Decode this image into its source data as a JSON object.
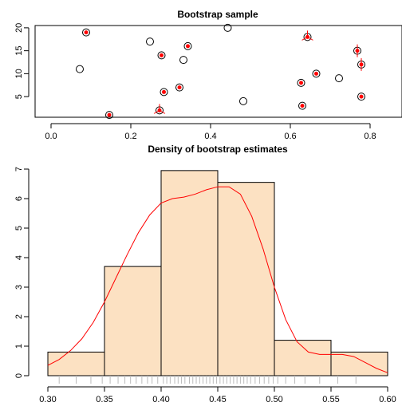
{
  "colors": {
    "bar_fill": "#fce1c2",
    "density_line": "#ff0000",
    "marker_red": "#ff0000",
    "axis": "#000000",
    "rug": "#bbbbbb"
  },
  "chart_data": [
    {
      "type": "scatter",
      "title": "Bootstrap sample",
      "xlabel": "",
      "ylabel": "",
      "xlim": [
        -0.04,
        0.88
      ],
      "ylim": [
        0.5,
        20.5
      ],
      "xticks": [
        "0.0",
        "0.2",
        "0.4",
        "0.6",
        "0.8"
      ],
      "yticks": [
        "5",
        "10",
        "15",
        "20"
      ],
      "grid": false,
      "points": [
        {
          "x": 0.443,
          "y": 20,
          "red": false
        },
        {
          "x": 0.088,
          "y": 19,
          "red": true
        },
        {
          "x": 0.643,
          "y": 18,
          "red": true
        },
        {
          "x": 0.248,
          "y": 17,
          "red": false
        },
        {
          "x": 0.343,
          "y": 16,
          "red": true
        },
        {
          "x": 0.768,
          "y": 15,
          "red": true
        },
        {
          "x": 0.277,
          "y": 14,
          "red": true
        },
        {
          "x": 0.332,
          "y": 13,
          "red": false
        },
        {
          "x": 0.778,
          "y": 12,
          "red": true
        },
        {
          "x": 0.072,
          "y": 11,
          "red": false
        },
        {
          "x": 0.665,
          "y": 10,
          "red": true
        },
        {
          "x": 0.722,
          "y": 9,
          "red": false
        },
        {
          "x": 0.627,
          "y": 8,
          "red": true
        },
        {
          "x": 0.322,
          "y": 7,
          "red": true
        },
        {
          "x": 0.283,
          "y": 6,
          "red": true
        },
        {
          "x": 0.778,
          "y": 5,
          "red": true
        },
        {
          "x": 0.482,
          "y": 4,
          "red": false
        },
        {
          "x": 0.63,
          "y": 3,
          "red": true
        },
        {
          "x": 0.272,
          "y": 2,
          "red": true
        },
        {
          "x": 0.146,
          "y": 1,
          "red": true
        }
      ],
      "resample_counts": [
        {
          "x": 0.643,
          "y": 18,
          "count": 3
        },
        {
          "x": 0.768,
          "y": 15,
          "count": 2
        },
        {
          "x": 0.778,
          "y": 12,
          "count": 2
        },
        {
          "x": 0.272,
          "y": 2,
          "count": 3
        }
      ]
    },
    {
      "type": "histogram",
      "title": "Density of bootstrap estimates",
      "xlabel": "",
      "ylabel": "",
      "xlim": [
        0.3,
        0.6
      ],
      "ylim": [
        0,
        7
      ],
      "xticks": [
        "0.30",
        "0.35",
        "0.40",
        "0.45",
        "0.50",
        "0.55",
        "0.60"
      ],
      "yticks": [
        "0",
        "1",
        "2",
        "3",
        "4",
        "5",
        "6",
        "7"
      ],
      "bins": [
        {
          "from": 0.3,
          "to": 0.35,
          "density": 0.8
        },
        {
          "from": 0.35,
          "to": 0.4,
          "density": 3.7
        },
        {
          "from": 0.4,
          "to": 0.45,
          "density": 6.95
        },
        {
          "from": 0.45,
          "to": 0.5,
          "density": 6.55
        },
        {
          "from": 0.5,
          "to": 0.55,
          "density": 1.2
        },
        {
          "from": 0.55,
          "to": 0.6,
          "density": 0.8
        }
      ],
      "density_curve": {
        "x": [
          0.3,
          0.31,
          0.32,
          0.33,
          0.34,
          0.35,
          0.36,
          0.37,
          0.38,
          0.39,
          0.4,
          0.41,
          0.42,
          0.43,
          0.44,
          0.45,
          0.46,
          0.47,
          0.48,
          0.49,
          0.5,
          0.51,
          0.52,
          0.53,
          0.54,
          0.55,
          0.56,
          0.57,
          0.58,
          0.59,
          0.6
        ],
        "y": [
          0.35,
          0.55,
          0.85,
          1.25,
          1.8,
          2.5,
          3.3,
          4.1,
          4.85,
          5.45,
          5.85,
          6.0,
          6.05,
          6.15,
          6.3,
          6.4,
          6.4,
          6.15,
          5.4,
          4.3,
          3.0,
          1.9,
          1.15,
          0.8,
          0.72,
          0.72,
          0.72,
          0.65,
          0.45,
          0.25,
          0.1
        ]
      },
      "rug": [
        0.31,
        0.325,
        0.338,
        0.348,
        0.355,
        0.362,
        0.368,
        0.373,
        0.378,
        0.383,
        0.388,
        0.392,
        0.397,
        0.402,
        0.405,
        0.408,
        0.412,
        0.415,
        0.418,
        0.421,
        0.425,
        0.428,
        0.431,
        0.434,
        0.437,
        0.44,
        0.443,
        0.446,
        0.449,
        0.452,
        0.455,
        0.458,
        0.461,
        0.464,
        0.467,
        0.47,
        0.473,
        0.476,
        0.479,
        0.483,
        0.487,
        0.491,
        0.495,
        0.499,
        0.503,
        0.51,
        0.518,
        0.527,
        0.54,
        0.556,
        0.572
      ]
    }
  ]
}
